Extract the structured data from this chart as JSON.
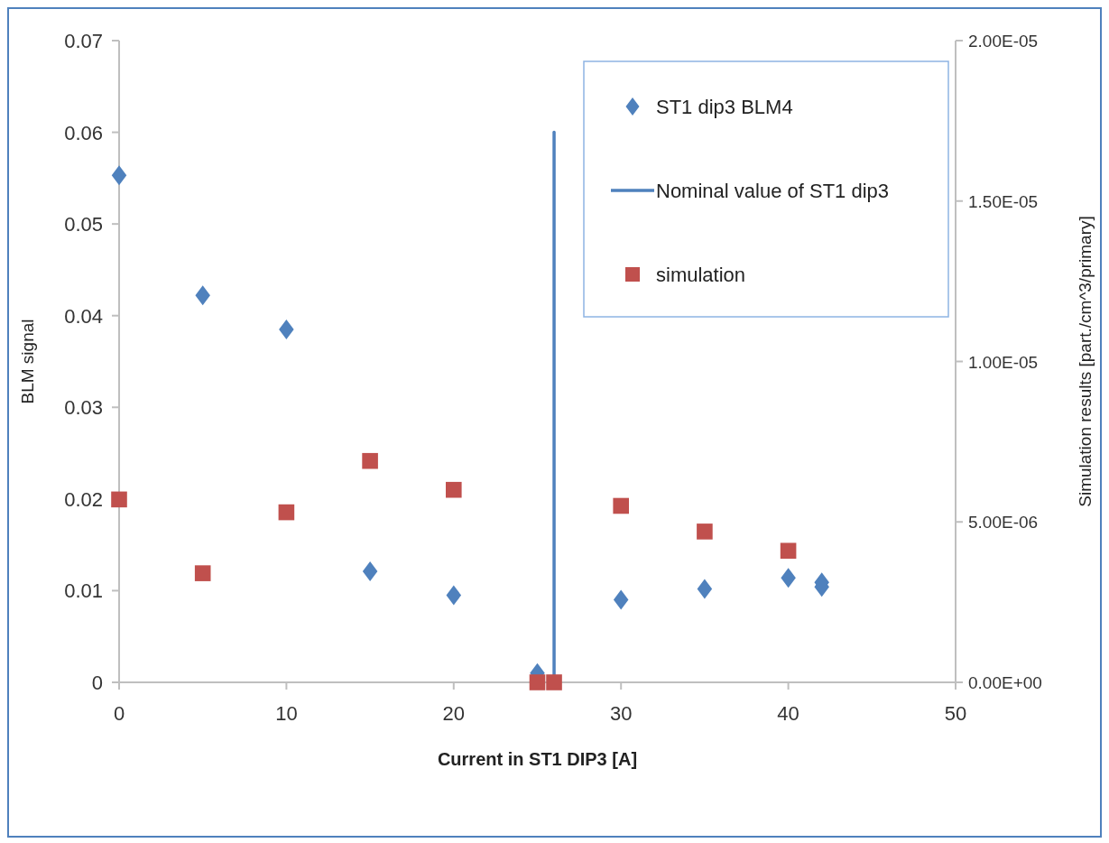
{
  "chart_data": {
    "type": "scatter",
    "xlabel": "Current in ST1 DIP3 [A]",
    "ylabel": "BLM signal",
    "y2label": "Simulation results [part./cm^3/primary]",
    "xlim": [
      0,
      50
    ],
    "xticks": [
      0,
      10,
      20,
      30,
      40,
      50
    ],
    "ylim": [
      0,
      0.07
    ],
    "yticks": [
      0,
      0.01,
      0.02,
      0.03,
      0.04,
      0.05,
      0.06,
      0.07
    ],
    "y2lim": [
      0,
      2e-05
    ],
    "y2ticks": [
      {
        "value": 0,
        "label": "0.00E+00"
      },
      {
        "value": 5e-06,
        "label": "5.00E-06"
      },
      {
        "value": 1e-05,
        "label": "1.00E-05"
      },
      {
        "value": 1.5e-05,
        "label": "1.50E-05"
      },
      {
        "value": 2e-05,
        "label": "2.00E-05"
      }
    ],
    "grid": false,
    "legend": "top right",
    "series": [
      {
        "name": "ST1 dip3 BLM4",
        "color": "#4f81bd",
        "marker": "diamond",
        "x": [
          0,
          5,
          10,
          15,
          20,
          25,
          30,
          35,
          40,
          42,
          42
        ],
        "values": [
          0.0553,
          0.0422,
          0.0385,
          0.0121,
          0.0095,
          0.001,
          0.009,
          0.0102,
          0.0114,
          0.0109,
          0.0104
        ]
      },
      {
        "name": "Nominal value of ST1 dip3",
        "type": "line",
        "color": "#4f81bd",
        "marker": "none",
        "x": [
          26,
          26
        ],
        "values": [
          0,
          0.06
        ]
      },
      {
        "name": "simulation",
        "color": "#c0504d",
        "marker": "square",
        "axis": "y2",
        "x": [
          0,
          5,
          10,
          15,
          20,
          25,
          26,
          30,
          35,
          40
        ],
        "values": [
          5.7e-06,
          3.4e-06,
          5.3e-06,
          6.9e-06,
          6e-06,
          0,
          0,
          5.5e-06,
          4.7e-06,
          4.1e-06
        ]
      }
    ]
  }
}
